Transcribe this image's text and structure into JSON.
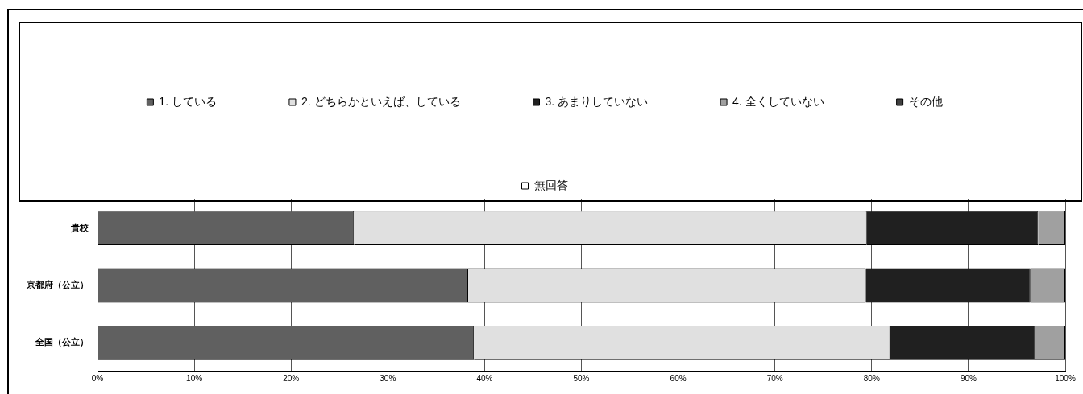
{
  "chart_data": {
    "type": "bar",
    "orientation": "horizontal",
    "stacked": true,
    "categories": [
      "貴校",
      "京都府（公立）",
      "全国（公立）"
    ],
    "series": [
      {
        "name": "1. している",
        "color": "#606060",
        "values": [
          26.5,
          38.3,
          38.9
        ]
      },
      {
        "name": "2. どちらかといえば、している",
        "color": "#e0e0e0",
        "values": [
          53.0,
          41.1,
          43.0
        ]
      },
      {
        "name": "3. あまりしていない",
        "color": "#202020",
        "values": [
          17.7,
          17.0,
          15.0
        ]
      },
      {
        "name": "4. 全くしていない",
        "color": "#a0a0a0",
        "values": [
          2.8,
          3.6,
          3.1
        ]
      },
      {
        "name": "その他",
        "color": "#404040",
        "values": [
          0,
          0,
          0
        ]
      },
      {
        "name": "無回答",
        "color": "#ffffff",
        "values": [
          0,
          0,
          0
        ]
      }
    ],
    "xlim": [
      0,
      100
    ],
    "xticks": [
      {
        "value": 0,
        "label": "0%"
      },
      {
        "value": 10,
        "label": "10%"
      },
      {
        "value": 20,
        "label": "20%"
      },
      {
        "value": 30,
        "label": "30%"
      },
      {
        "value": 40,
        "label": "40%"
      },
      {
        "value": 50,
        "label": "50%"
      },
      {
        "value": 60,
        "label": "60%"
      },
      {
        "value": 70,
        "label": "70%"
      },
      {
        "value": 80,
        "label": "80%"
      },
      {
        "value": 90,
        "label": "90%"
      },
      {
        "value": 100,
        "label": "100%"
      }
    ],
    "grid": "x",
    "legend": "top"
  }
}
